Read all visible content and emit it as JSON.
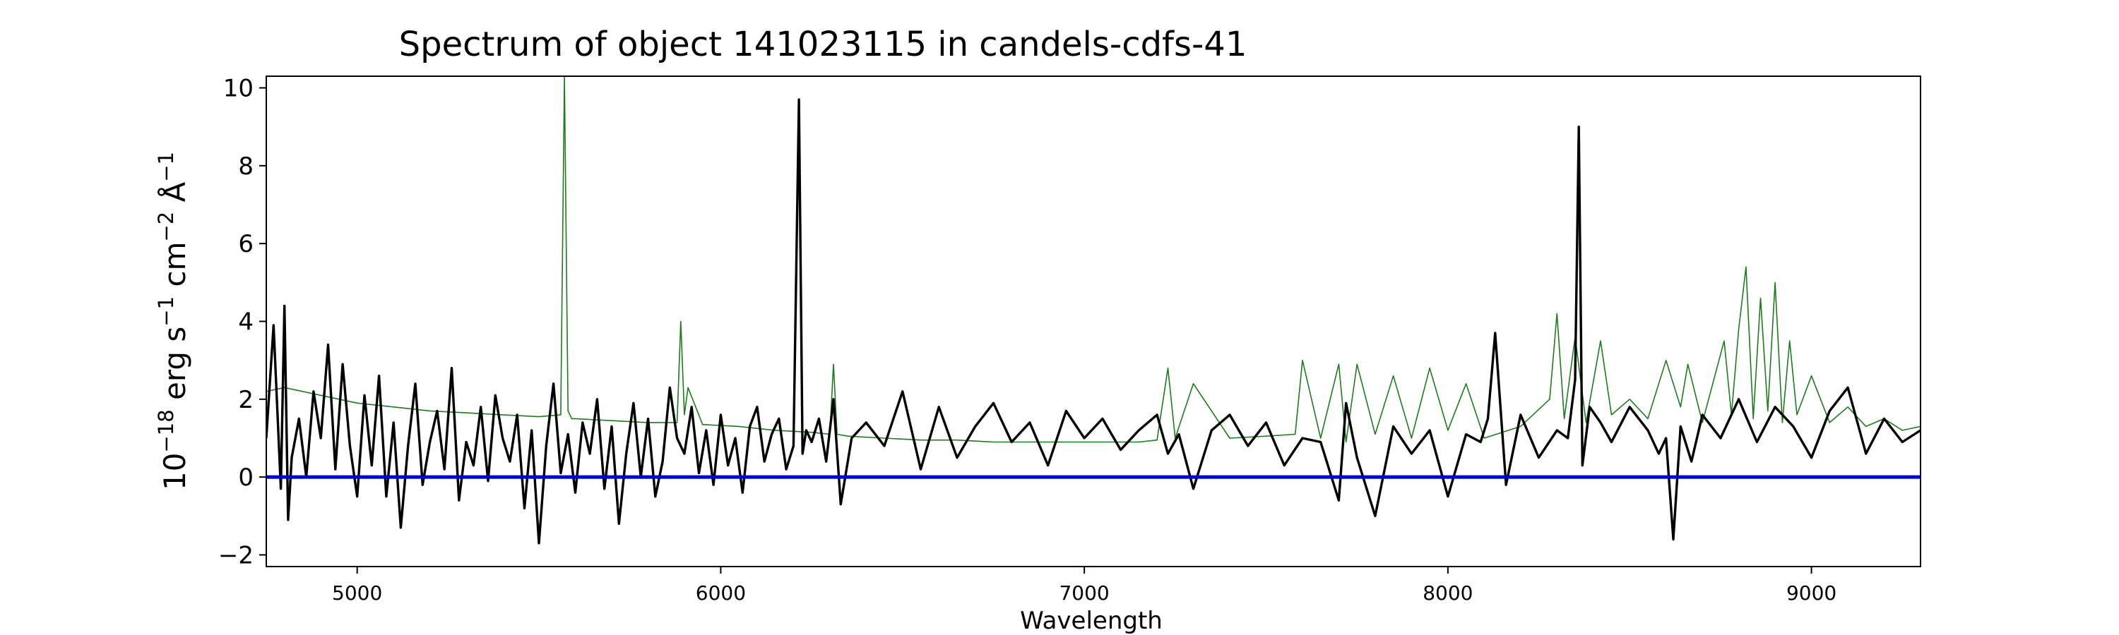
{
  "chart_data": {
    "type": "line",
    "title": "Spectrum of object 141023115 in candels-cdfs-41",
    "xlabel": "Wavelength",
    "ylabel": {
      "base": "10",
      "exp1": "−18",
      "mid1": " erg s",
      "exp2": "−1",
      "mid2": " cm",
      "exp3": "−2",
      "mid3": " Å",
      "exp4": "−1"
    },
    "xlim": [
      4750,
      9300
    ],
    "ylim": [
      -2.3,
      10.3
    ],
    "xticks": [
      5000,
      6000,
      7000,
      8000,
      9000
    ],
    "xtick_labels": [
      "5000",
      "6000",
      "7000",
      "8000",
      "9000"
    ],
    "yticks": [
      -2,
      0,
      2,
      4,
      6,
      8,
      10
    ],
    "ytick_labels": [
      "−2",
      "0",
      "2",
      "4",
      "6",
      "8",
      "10"
    ],
    "grid": false,
    "colors": {
      "flux": "#000000",
      "model": "#1f7a1f",
      "zero": "#0000cc"
    },
    "series": [
      {
        "id": "flux",
        "color": "#000000",
        "x": [
          4750,
          4770,
          4790,
          4800,
          4810,
          4820,
          4840,
          4860,
          4880,
          4900,
          4920,
          4940,
          4960,
          4980,
          5000,
          5020,
          5040,
          5060,
          5080,
          5100,
          5120,
          5140,
          5160,
          5180,
          5200,
          5220,
          5240,
          5260,
          5280,
          5300,
          5320,
          5340,
          5360,
          5380,
          5400,
          5420,
          5440,
          5460,
          5480,
          5500,
          5520,
          5540,
          5560,
          5580,
          5600,
          5620,
          5640,
          5660,
          5680,
          5700,
          5720,
          5740,
          5760,
          5780,
          5800,
          5820,
          5840,
          5860,
          5880,
          5900,
          5920,
          5940,
          5960,
          5980,
          6000,
          6020,
          6040,
          6060,
          6080,
          6100,
          6120,
          6140,
          6160,
          6180,
          6200,
          6215,
          6225,
          6235,
          6250,
          6270,
          6290,
          6310,
          6330,
          6360,
          6400,
          6450,
          6500,
          6550,
          6600,
          6650,
          6700,
          6750,
          6800,
          6850,
          6900,
          6950,
          7000,
          7050,
          7100,
          7150,
          7200,
          7230,
          7260,
          7300,
          7350,
          7400,
          7450,
          7500,
          7550,
          7600,
          7650,
          7700,
          7720,
          7750,
          7800,
          7850,
          7900,
          7950,
          8000,
          8050,
          8090,
          8110,
          8130,
          8160,
          8200,
          8250,
          8300,
          8330,
          8350,
          8360,
          8370,
          8390,
          8420,
          8450,
          8500,
          8550,
          8580,
          8600,
          8620,
          8640,
          8670,
          8700,
          8750,
          8800,
          8850,
          8900,
          8950,
          9000,
          9050,
          9100,
          9150,
          9200,
          9250,
          9300
        ],
        "y": [
          1.0,
          3.9,
          -0.3,
          4.4,
          -1.1,
          0.5,
          1.5,
          0.0,
          2.2,
          1.0,
          3.4,
          0.2,
          2.9,
          0.8,
          -0.5,
          2.1,
          0.3,
          2.6,
          -0.5,
          1.4,
          -1.3,
          0.8,
          2.4,
          -0.2,
          0.9,
          1.7,
          0.2,
          2.8,
          -0.6,
          0.9,
          0.3,
          1.8,
          -0.1,
          2.1,
          1.0,
          0.4,
          1.6,
          -0.8,
          1.2,
          -1.7,
          0.8,
          2.4,
          0.1,
          1.1,
          -0.4,
          1.4,
          0.6,
          2.0,
          -0.3,
          1.3,
          -1.2,
          0.6,
          1.9,
          0.0,
          1.5,
          -0.5,
          0.4,
          2.3,
          1.0,
          0.6,
          1.8,
          0.1,
          1.2,
          -0.2,
          1.6,
          0.3,
          1.0,
          -0.4,
          1.3,
          1.8,
          0.4,
          1.1,
          1.5,
          0.2,
          0.8,
          9.7,
          0.6,
          1.2,
          0.9,
          1.5,
          0.4,
          2.0,
          -0.7,
          1.0,
          1.4,
          0.8,
          2.2,
          0.2,
          1.8,
          0.5,
          1.3,
          1.9,
          0.9,
          1.4,
          0.3,
          1.7,
          1.0,
          1.5,
          0.7,
          1.2,
          1.6,
          0.6,
          1.1,
          -0.3,
          1.2,
          1.6,
          0.8,
          1.4,
          0.3,
          1.0,
          0.9,
          -0.6,
          1.9,
          0.5,
          -1.0,
          1.3,
          0.6,
          1.2,
          -0.5,
          1.1,
          0.9,
          1.5,
          3.7,
          -0.2,
          1.6,
          0.5,
          1.2,
          1.0,
          2.5,
          9.0,
          0.3,
          1.8,
          1.4,
          0.9,
          1.8,
          1.2,
          0.6,
          1.0,
          -1.6,
          1.3,
          0.4,
          1.6,
          1.0,
          2.0,
          0.9,
          1.8,
          1.3,
          0.5,
          1.7,
          2.3,
          0.6,
          1.5,
          0.9,
          1.2
        ]
      },
      {
        "id": "model",
        "color": "#1f7a1f",
        "x": [
          4750,
          4800,
          4900,
          5000,
          5100,
          5200,
          5300,
          5400,
          5500,
          5560,
          5570,
          5580,
          5590,
          5600,
          5700,
          5800,
          5880,
          5890,
          5900,
          5910,
          5950,
          6050,
          6150,
          6250,
          6300,
          6310,
          6320,
          6350,
          6450,
          6550,
          6650,
          6750,
          6850,
          6950,
          7050,
          7150,
          7200,
          7230,
          7250,
          7300,
          7400,
          7500,
          7580,
          7600,
          7650,
          7700,
          7720,
          7750,
          7800,
          7850,
          7900,
          7950,
          8000,
          8050,
          8100,
          8200,
          8280,
          8300,
          8320,
          8350,
          8380,
          8420,
          8450,
          8500,
          8550,
          8600,
          8640,
          8660,
          8700,
          8760,
          8780,
          8800,
          8820,
          8840,
          8860,
          8880,
          8900,
          8920,
          8940,
          8960,
          9000,
          9050,
          9100,
          9150,
          9200,
          9250,
          9300
        ],
        "y": [
          2.2,
          2.3,
          2.1,
          1.9,
          1.8,
          1.7,
          1.65,
          1.6,
          1.55,
          1.6,
          10.3,
          1.7,
          1.5,
          1.5,
          1.45,
          1.4,
          1.4,
          4.0,
          1.6,
          2.3,
          1.35,
          1.3,
          1.2,
          1.15,
          1.1,
          2.9,
          1.1,
          1.05,
          1.0,
          0.95,
          0.95,
          0.9,
          0.9,
          0.9,
          0.9,
          0.9,
          0.95,
          2.8,
          1.0,
          2.4,
          1.0,
          1.05,
          1.1,
          3.0,
          1.0,
          2.9,
          0.9,
          2.9,
          1.1,
          2.6,
          1.0,
          2.8,
          1.2,
          2.4,
          1.0,
          1.3,
          2.0,
          4.2,
          1.5,
          3.6,
          1.4,
          3.5,
          1.6,
          2.0,
          1.5,
          3.0,
          1.8,
          2.9,
          1.4,
          3.5,
          1.6,
          3.8,
          5.4,
          1.5,
          4.6,
          1.7,
          5.0,
          1.4,
          3.5,
          1.6,
          2.6,
          1.4,
          1.8,
          1.3,
          1.5,
          1.2,
          1.3
        ]
      },
      {
        "id": "zero",
        "color": "#0000cc",
        "x": [
          4750,
          9300
        ],
        "y": [
          0,
          0
        ]
      }
    ]
  }
}
